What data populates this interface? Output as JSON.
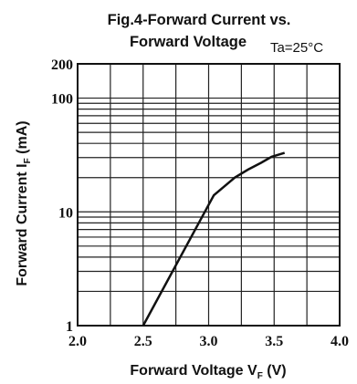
{
  "chart_data": {
    "type": "line",
    "title_line1": "Fig.4-Forward Current vs.",
    "title_line2": "Forward Voltage",
    "condition": "Ta=25°C",
    "xlabel_main": "Forward Voltage  V",
    "xlabel_sub": "F",
    "xlabel_unit": " (V)",
    "ylabel_main": "Forward Current   I",
    "ylabel_sub": "F",
    "ylabel_unit": " (mA)",
    "x_scale": "linear",
    "y_scale": "log",
    "xlim": [
      2.0,
      4.0
    ],
    "ylim": [
      1,
      200
    ],
    "x_ticks": [
      "2.0",
      "2.5",
      "3.0",
      "3.5",
      "4.0"
    ],
    "y_ticks": [
      "1",
      "10",
      "100",
      "200"
    ],
    "grid": true,
    "series": [
      {
        "x": [
          2.5,
          3.04,
          3.2,
          3.3,
          3.4,
          3.48,
          3.58
        ],
        "y": [
          1,
          14,
          20,
          23.5,
          27,
          30.5,
          33
        ]
      }
    ]
  }
}
